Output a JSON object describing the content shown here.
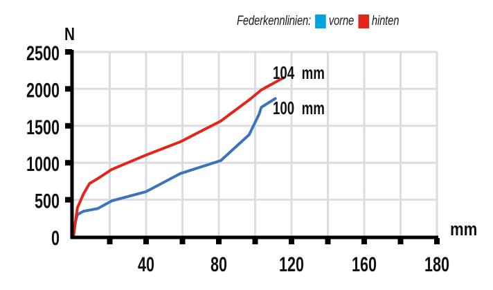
{
  "legend": {
    "title": "Federkennlinien:",
    "items": [
      {
        "label": "vorne",
        "color": "#00a3e0"
      },
      {
        "label": "hinten",
        "color": "#e3261c"
      }
    ]
  },
  "axes": {
    "y_unit": "N",
    "x_unit": "mm",
    "y_ticks": [
      "0",
      "500",
      "1000",
      "1500",
      "2000",
      "2500"
    ],
    "x_tick_labels": [
      {
        "label": "40",
        "tick_index": 2
      },
      {
        "label": "80",
        "tick_index": 4
      },
      {
        "label": "120",
        "tick_index": 6
      },
      {
        "label": "160",
        "tick_index": 8
      },
      {
        "label": "180",
        "tick_index": 10
      }
    ]
  },
  "annotations": {
    "red_end": "104  mm",
    "blue_end": "100  mm"
  },
  "colors": {
    "grid": "#d9dee3",
    "axis": "#000000",
    "red_line": "#e3261c",
    "blue_line": "#3b74b8"
  },
  "chart_data": {
    "type": "line",
    "title": "Federkennlinien",
    "xlabel": "mm",
    "ylabel": "N",
    "xlim": [
      0,
      180
    ],
    "ylim": [
      0,
      2500
    ],
    "grid": true,
    "legend_position": "top-right",
    "x_tick_labels": [
      "40",
      "80",
      "120",
      "160",
      "180"
    ],
    "y_tick_labels": [
      "0",
      "500",
      "1000",
      "1500",
      "2000",
      "2500"
    ],
    "series": [
      {
        "name": "vorne",
        "color": "#00a3e0",
        "x": [
          0,
          1,
          2,
          5,
          12,
          19,
          36,
          53,
          73,
          87,
          92,
          93,
          100
        ],
        "y": [
          0,
          200,
          300,
          345,
          380,
          485,
          610,
          855,
          1030,
          1380,
          1660,
          1750,
          1870
        ],
        "end_label": "100 mm"
      },
      {
        "name": "hinten",
        "color": "#e3261c",
        "x": [
          0,
          1,
          2,
          5,
          8,
          12,
          19,
          36,
          53,
          73,
          87,
          93,
          104
        ],
        "y": [
          0,
          200,
          390,
          580,
          720,
          785,
          910,
          1105,
          1285,
          1565,
          1850,
          1985,
          2150
        ],
        "end_label": "104 mm"
      }
    ],
    "annotations": [
      "104 mm",
      "100 mm"
    ]
  }
}
